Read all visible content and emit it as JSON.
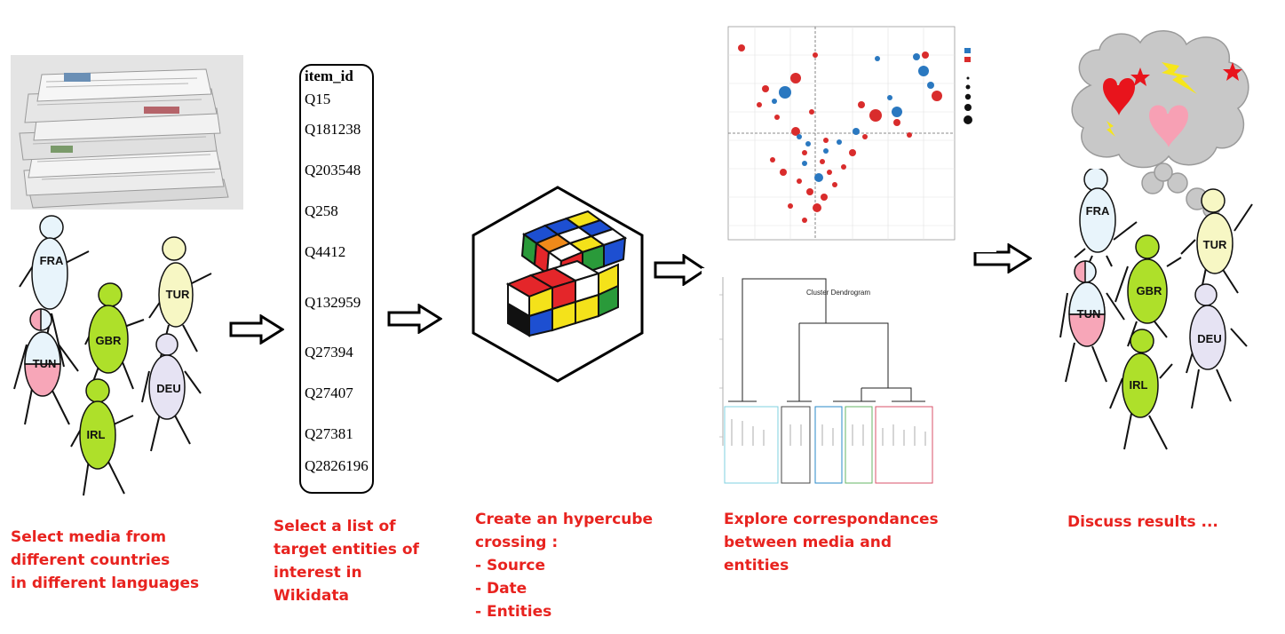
{
  "steps": [
    {
      "lines": [
        "Select media from",
        "different countries",
        "in different languages"
      ]
    },
    {
      "lines": [
        "Select a list of",
        "target entities of",
        "interest in",
        "Wikidata"
      ]
    },
    {
      "lines": [
        "Create an hypercube",
        "crossing :",
        "- Source",
        "- Date",
        "- Entities"
      ]
    },
    {
      "lines": [
        "Explore correspondances",
        "between media and",
        "entities"
      ]
    },
    {
      "lines": [
        "Discuss results ..."
      ]
    }
  ],
  "people_left": [
    "FRA",
    "TUR",
    "TUN",
    "GBR",
    "DEU",
    "IRL"
  ],
  "people_right": [
    "FRA",
    "TUR",
    "GBR",
    "TUN",
    "DEU",
    "IRL"
  ],
  "entity_list": {
    "header": "item_id",
    "items": [
      "Q15",
      "Q181238",
      "Q203548",
      "Q258",
      "Q4412",
      "Q132959",
      "Q27394",
      "Q27407",
      "Q27381",
      "Q2826196"
    ]
  },
  "dendrogram_title": "Cluster Dendrogram",
  "colors": {
    "caption": "#e8231f",
    "person_green": "#aee02a",
    "person_yellow": "#f7f7c4",
    "person_blue": "#e8f4fb",
    "person_lavender": "#e6e3f3",
    "person_pink": "#f7a6b8"
  }
}
